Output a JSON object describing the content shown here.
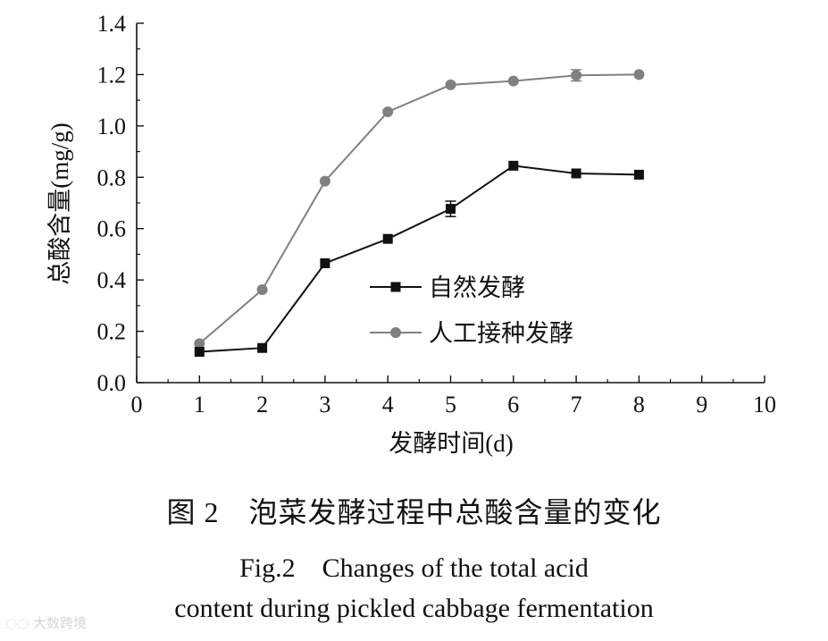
{
  "chart_data": {
    "type": "line",
    "xlabel": "发酵时间(d)",
    "ylabel": "总酸含量(mg/g)",
    "xlim": [
      0,
      10
    ],
    "ylim": [
      0,
      1.4
    ],
    "x_ticks": [
      "0",
      "1",
      "2",
      "3",
      "4",
      "5",
      "6",
      "7",
      "8",
      "9",
      "10"
    ],
    "y_ticks": [
      "0.0",
      "0.2",
      "0.4",
      "0.6",
      "0.8",
      "1.0",
      "1.2",
      "1.4"
    ],
    "grid": false,
    "legend_position": "center-right",
    "x": [
      1,
      2,
      3,
      4,
      5,
      6,
      7,
      8
    ],
    "series": [
      {
        "name": "自然发酵",
        "marker": "square",
        "color": "#111111",
        "values": [
          0.12,
          0.135,
          0.465,
          0.56,
          0.677,
          0.845,
          0.815,
          0.81
        ],
        "error": [
          0,
          0,
          0,
          0,
          0.03,
          0,
          0,
          0
        ]
      },
      {
        "name": "人工接种发酵",
        "marker": "circle",
        "color": "#808080",
        "values": [
          0.152,
          0.362,
          0.785,
          1.055,
          1.16,
          1.175,
          1.197,
          1.2
        ],
        "error": [
          0,
          0,
          0,
          0,
          0,
          0,
          0.022,
          0
        ]
      }
    ]
  },
  "caption": {
    "chinese": "图 2　泡菜发酵过程中总酸含量的变化",
    "english_line1": "Fig.2　Changes of the total acid",
    "english_line2": "content during pickled cabbage fermentation"
  },
  "watermark": "大数跨境"
}
